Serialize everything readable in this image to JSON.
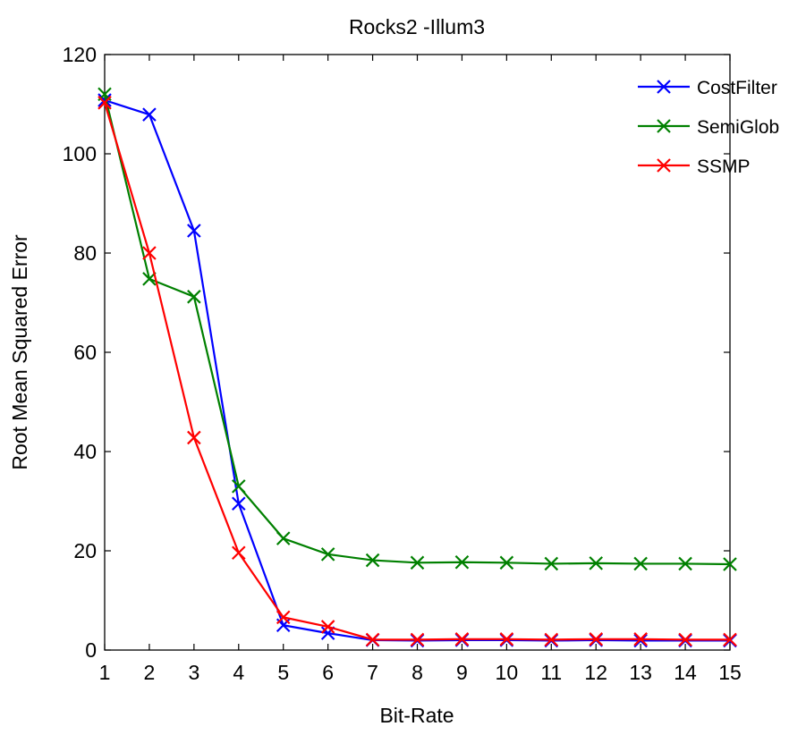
{
  "chart_data": {
    "type": "line",
    "title": "Rocks2 -Illum3",
    "xlabel": "Bit-Rate",
    "ylabel": "Root Mean Squared Error",
    "x": [
      1,
      2,
      3,
      4,
      5,
      6,
      7,
      8,
      9,
      10,
      11,
      12,
      13,
      14,
      15
    ],
    "xlim": [
      1,
      15
    ],
    "ylim": [
      0,
      120
    ],
    "xticks": [
      1,
      2,
      3,
      4,
      5,
      6,
      7,
      8,
      9,
      10,
      11,
      12,
      13,
      14,
      15
    ],
    "yticks": [
      0,
      20,
      40,
      60,
      80,
      100,
      120
    ],
    "grid": false,
    "legend_position": "top-right",
    "marker": "x",
    "series": [
      {
        "name": "CostFilter",
        "color": "#0000ff",
        "values": [
          110.8,
          107.9,
          84.5,
          29.5,
          5.0,
          3.4,
          2.0,
          1.9,
          2.0,
          2.0,
          1.9,
          2.0,
          1.9,
          1.9,
          1.9
        ]
      },
      {
        "name": "SemiGlob",
        "color": "#008000",
        "values": [
          112.0,
          74.8,
          71.2,
          33.0,
          22.5,
          19.3,
          18.1,
          17.6,
          17.7,
          17.6,
          17.4,
          17.5,
          17.4,
          17.4,
          17.3
        ]
      },
      {
        "name": "SSMP",
        "color": "#ff0000",
        "values": [
          110.3,
          80.0,
          42.8,
          19.6,
          6.6,
          4.7,
          2.1,
          2.1,
          2.2,
          2.2,
          2.1,
          2.2,
          2.2,
          2.1,
          2.1
        ]
      }
    ]
  }
}
